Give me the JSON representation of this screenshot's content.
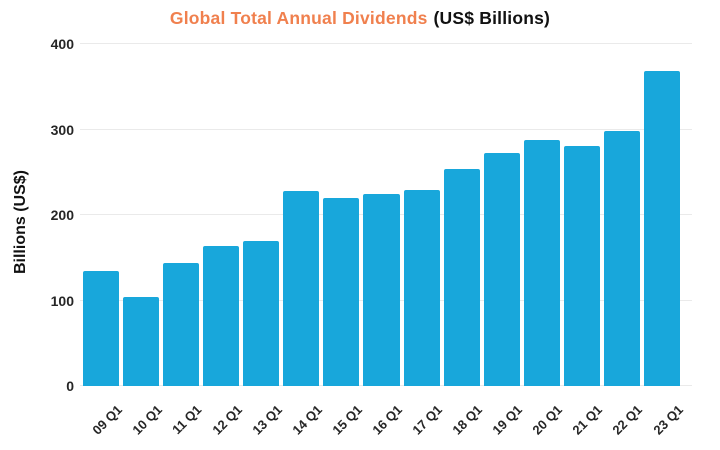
{
  "chart_data": {
    "type": "bar",
    "title": "Global Total Annual Dividends",
    "title_suffix": "(US$ Billions)",
    "ylabel": "Billions (US$)",
    "categories": [
      "09 Q1",
      "10 Q1",
      "11 Q1",
      "12 Q1",
      "13 Q1",
      "14 Q1",
      "15 Q1",
      "16 Q1",
      "17 Q1",
      "18 Q1",
      "19 Q1",
      "20 Q1",
      "21 Q1",
      "22 Q1",
      "23 Q1"
    ],
    "values": [
      134,
      104,
      144,
      164,
      170,
      228,
      220,
      224,
      229,
      254,
      273,
      288,
      281,
      298,
      368
    ],
    "yticks": [
      0,
      100,
      200,
      300,
      400
    ],
    "ylim": [
      0,
      400
    ],
    "grid": true,
    "legend_position": "none",
    "colors": {
      "bars": "#18a7db",
      "title_highlight": "#f0804e",
      "title_text": "#111111",
      "axis_text": "#262626",
      "gridline": "#eaeaea"
    }
  }
}
